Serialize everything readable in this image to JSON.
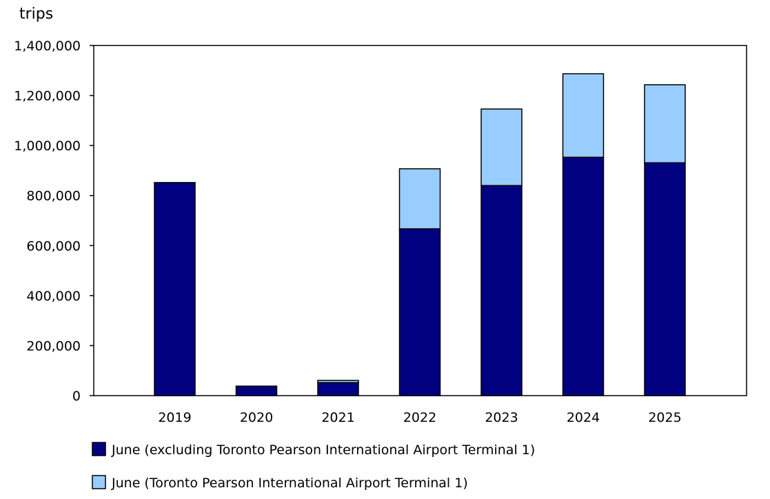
{
  "chart_data": {
    "type": "bar",
    "stacked": true,
    "ylabel": "trips",
    "ylim": [
      0,
      1400000
    ],
    "yticks": [
      0,
      200000,
      400000,
      600000,
      800000,
      1000000,
      1200000,
      1400000
    ],
    "ytick_labels": [
      "0",
      "200,000",
      "400,000",
      "600,000",
      "800,000",
      "1,000,000",
      "1,200,000",
      "1,400,000"
    ],
    "categories": [
      "2019",
      "2020",
      "2021",
      "2022",
      "2023",
      "2024",
      "2025"
    ],
    "grid": false,
    "legend_position": "bottom",
    "series": [
      {
        "name": "June (excluding Toronto Pearson International Airport Terminal 1)",
        "color": "#000080",
        "values": [
          852000,
          38000,
          52000,
          667000,
          840000,
          953000,
          931000
        ]
      },
      {
        "name": "June (Toronto Pearson International Airport Terminal 1)",
        "color": "#99ccff",
        "values": [
          0,
          0,
          9000,
          240000,
          306000,
          334000,
          312000
        ]
      }
    ]
  }
}
